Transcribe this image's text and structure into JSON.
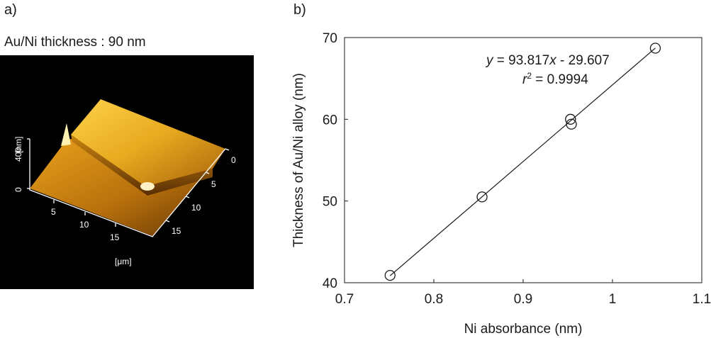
{
  "panel_a": {
    "label": "a)",
    "caption": "Au/Ni thickness : 90 nm",
    "afm": {
      "z_axis_label": "[nm]",
      "z_ticks": [
        "0",
        "400"
      ],
      "x_ticks": [
        "5",
        "10",
        "15"
      ],
      "y_ticks": [
        "0",
        "5",
        "10",
        "15"
      ],
      "unit_label": "[μm]",
      "colors": {
        "background": "#000000",
        "light": "#ffd24a",
        "mid": "#d9940f",
        "dark": "#7a4306"
      }
    }
  },
  "panel_b": {
    "label": "b)",
    "equation": {
      "y": "y",
      "equals_coef": " = 93.817",
      "x": "x",
      "intercept": " - 29.607"
    },
    "r2": {
      "r": "r",
      "sup": "2",
      "value": " = 0.9994"
    }
  },
  "chart_data": {
    "type": "scatter",
    "xlabel": "Ni absorbance (nm)",
    "ylabel": "Thickness of Au/Ni alloy (nm)",
    "xlim": [
      0.7,
      1.1
    ],
    "ylim": [
      40,
      70
    ],
    "xticks": [
      "0.7",
      "0.8",
      "0.9",
      "1",
      "1.1"
    ],
    "yticks": [
      "40",
      "50",
      "60",
      "70"
    ],
    "points": [
      {
        "x": 0.751,
        "y": 40.9
      },
      {
        "x": 0.854,
        "y": 50.5
      },
      {
        "x": 0.953,
        "y": 60.0
      },
      {
        "x": 0.954,
        "y": 59.4
      },
      {
        "x": 1.048,
        "y": 68.7
      }
    ],
    "fit": {
      "slope": 93.817,
      "intercept": -29.607,
      "x_range": [
        0.751,
        1.048
      ]
    },
    "grid": false,
    "marker": "open-circle"
  }
}
